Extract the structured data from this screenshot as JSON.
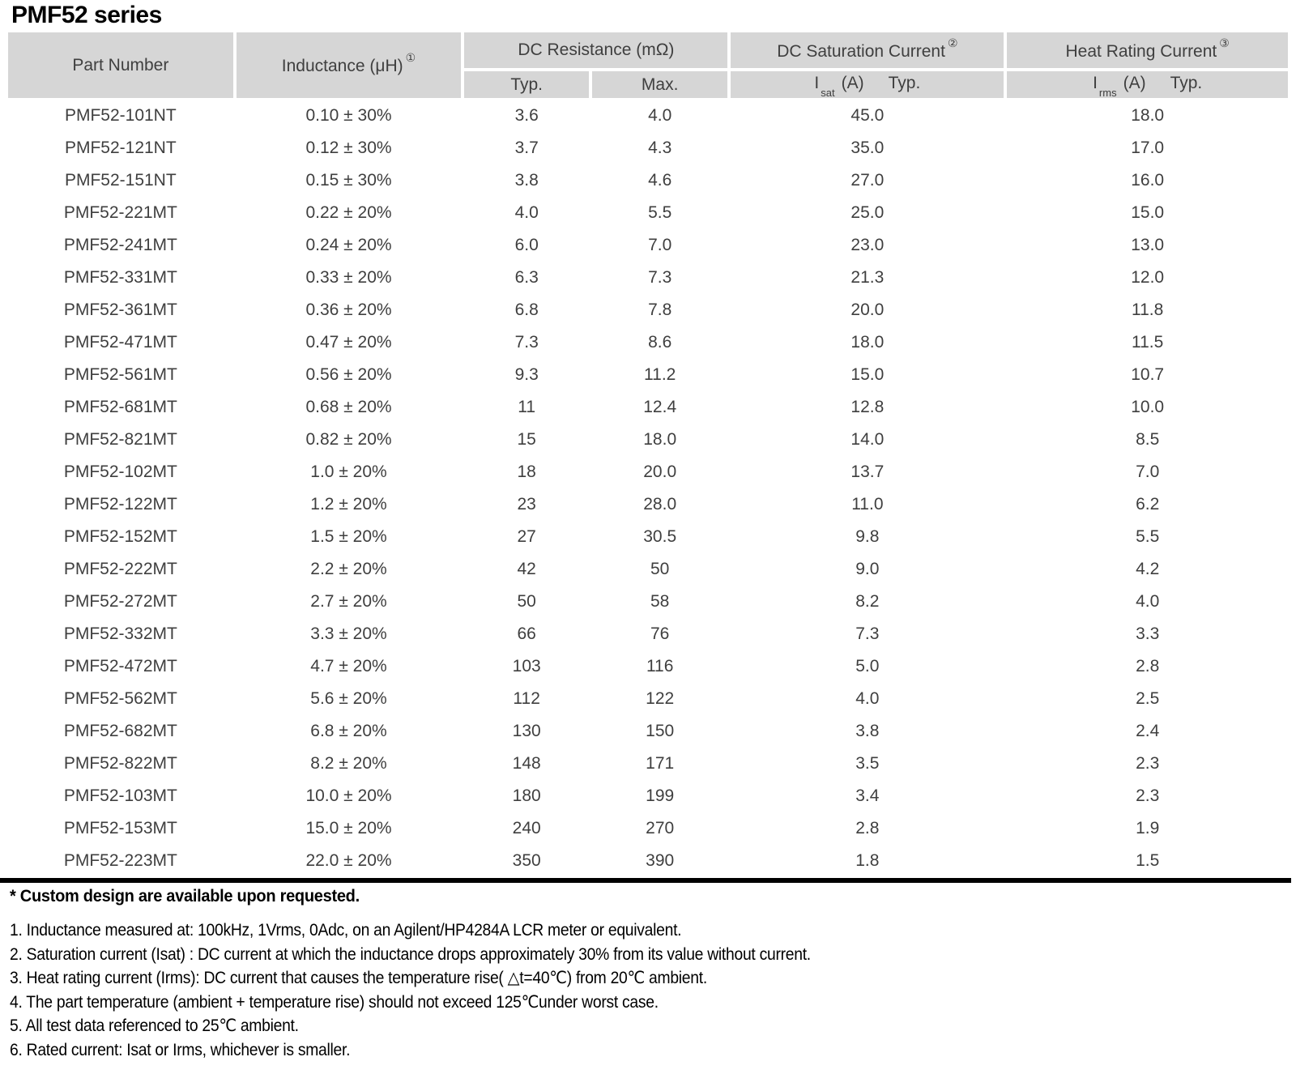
{
  "page_title": "PMF52 series",
  "colors": {
    "header_bg": "#d6d6d6",
    "header_text": "#3f3f3f",
    "body_text": "#3f3f3f",
    "rule": "#000000"
  },
  "table": {
    "header": {
      "part_number": "Part Number",
      "inductance": "Inductance (μH)",
      "inductance_ref": "①",
      "dc_resistance": "DC Resistance (mΩ)",
      "dc_resistance_typ": "Typ.",
      "dc_resistance_max": "Max.",
      "saturation": "DC Saturation Current",
      "saturation_ref": "②",
      "saturation_symbol": "I",
      "saturation_sub": "sat",
      "saturation_unit": "(A)",
      "saturation_typ": "Typ.",
      "heat": "Heat Rating Current",
      "heat_ref": "③",
      "heat_symbol": "I",
      "heat_sub": "rms",
      "heat_unit": "(A)",
      "heat_typ": "Typ."
    },
    "rows": [
      [
        "PMF52-101NT",
        "0.10 ± 30%",
        "3.6",
        "4.0",
        "45.0",
        "18.0"
      ],
      [
        "PMF52-121NT",
        "0.12 ± 30%",
        "3.7",
        "4.3",
        "35.0",
        "17.0"
      ],
      [
        "PMF52-151NT",
        "0.15 ± 30%",
        "3.8",
        "4.6",
        "27.0",
        "16.0"
      ],
      [
        "PMF52-221MT",
        "0.22 ± 20%",
        "4.0",
        "5.5",
        "25.0",
        "15.0"
      ],
      [
        "PMF52-241MT",
        "0.24 ± 20%",
        "6.0",
        "7.0",
        "23.0",
        "13.0"
      ],
      [
        "PMF52-331MT",
        "0.33 ± 20%",
        "6.3",
        "7.3",
        "21.3",
        "12.0"
      ],
      [
        "PMF52-361MT",
        "0.36 ± 20%",
        "6.8",
        "7.8",
        "20.0",
        "11.8"
      ],
      [
        "PMF52-471MT",
        "0.47 ± 20%",
        "7.3",
        "8.6",
        "18.0",
        "11.5"
      ],
      [
        "PMF52-561MT",
        "0.56 ± 20%",
        "9.3",
        "11.2",
        "15.0",
        "10.7"
      ],
      [
        "PMF52-681MT",
        "0.68 ± 20%",
        "11",
        "12.4",
        "12.8",
        "10.0"
      ],
      [
        "PMF52-821MT",
        "0.82 ± 20%",
        "15",
        "18.0",
        "14.0",
        "8.5"
      ],
      [
        "PMF52-102MT",
        "1.0 ± 20%",
        "18",
        "20.0",
        "13.7",
        "7.0"
      ],
      [
        "PMF52-122MT",
        "1.2 ± 20%",
        "23",
        "28.0",
        "11.0",
        "6.2"
      ],
      [
        "PMF52-152MT",
        "1.5 ± 20%",
        "27",
        "30.5",
        "9.8",
        "5.5"
      ],
      [
        "PMF52-222MT",
        "2.2 ± 20%",
        "42",
        "50",
        "9.0",
        "4.2"
      ],
      [
        "PMF52-272MT",
        "2.7 ± 20%",
        "50",
        "58",
        "8.2",
        "4.0"
      ],
      [
        "PMF52-332MT",
        "3.3 ± 20%",
        "66",
        "76",
        "7.3",
        "3.3"
      ],
      [
        "PMF52-472MT",
        "4.7 ± 20%",
        "103",
        "116",
        "5.0",
        "2.8"
      ],
      [
        "PMF52-562MT",
        "5.6 ± 20%",
        "112",
        "122",
        "4.0",
        "2.5"
      ],
      [
        "PMF52-682MT",
        "6.8 ± 20%",
        "130",
        "150",
        "3.8",
        "2.4"
      ],
      [
        "PMF52-822MT",
        "8.2 ± 20%",
        "148",
        "171",
        "3.5",
        "2.3"
      ],
      [
        "PMF52-103MT",
        "10.0 ± 20%",
        "180",
        "199",
        "3.4",
        "2.3"
      ],
      [
        "PMF52-153MT",
        "15.0 ± 20%",
        "240",
        "270",
        "2.8",
        "1.9"
      ],
      [
        "PMF52-223MT",
        "22.0 ± 20%",
        "350",
        "390",
        "1.8",
        "1.5"
      ]
    ]
  },
  "footnotes": {
    "custom_design": "* Custom design are available upon requested.",
    "items": [
      "1. Inductance measured at: 100kHz, 1Vrms, 0Adc, on an Agilent/HP4284A LCR meter or equivalent.",
      "2. Saturation current (Isat) : DC current at which the inductance drops approximately 30% from its value without current.",
      "3. Heat rating current (Irms): DC current that causes the temperature rise( △t=40℃) from 20℃ ambient.",
      "4. The part temperature (ambient + temperature rise) should not exceed 125℃under worst case.",
      "5. All test data referenced to 25℃ ambient.",
      "6. Rated current: Isat or Irms, whichever is smaller."
    ]
  }
}
